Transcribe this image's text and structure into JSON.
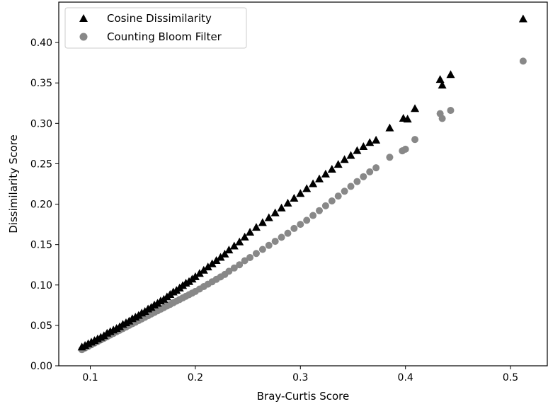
{
  "chart_data": {
    "type": "scatter",
    "title": "",
    "xlabel": "Bray-Curtis Score",
    "ylabel": "Dissimilarity Score",
    "xlim": [
      0.07,
      0.535
    ],
    "ylim": [
      0.0,
      0.45
    ],
    "xticks": [
      0.1,
      0.2,
      0.3,
      0.4,
      0.5
    ],
    "xtick_labels": [
      "0.1",
      "0.2",
      "0.3",
      "0.4",
      "0.5"
    ],
    "yticks": [
      0.0,
      0.05,
      0.1,
      0.15,
      0.2,
      0.25,
      0.3,
      0.35,
      0.4
    ],
    "ytick_labels": [
      "0.00",
      "0.05",
      "0.10",
      "0.15",
      "0.20",
      "0.25",
      "0.30",
      "0.35",
      "0.40"
    ],
    "grid": false,
    "legend_position": "top-left",
    "series": [
      {
        "name": "Cosine Dissimilarity",
        "marker": "triangle",
        "color": "#000000",
        "x": [
          0.092,
          0.095,
          0.098,
          0.101,
          0.104,
          0.107,
          0.11,
          0.113,
          0.116,
          0.119,
          0.122,
          0.125,
          0.128,
          0.131,
          0.134,
          0.137,
          0.14,
          0.143,
          0.146,
          0.149,
          0.152,
          0.155,
          0.158,
          0.161,
          0.164,
          0.167,
          0.17,
          0.173,
          0.176,
          0.179,
          0.182,
          0.185,
          0.188,
          0.191,
          0.194,
          0.197,
          0.2,
          0.204,
          0.208,
          0.212,
          0.216,
          0.22,
          0.224,
          0.228,
          0.232,
          0.237,
          0.242,
          0.247,
          0.252,
          0.258,
          0.264,
          0.27,
          0.276,
          0.282,
          0.288,
          0.294,
          0.3,
          0.306,
          0.312,
          0.318,
          0.324,
          0.33,
          0.336,
          0.342,
          0.348,
          0.354,
          0.36,
          0.366,
          0.372,
          0.385,
          0.398,
          0.402,
          0.409,
          0.433,
          0.435,
          0.443,
          0.512
        ],
        "y": [
          0.023,
          0.025,
          0.027,
          0.029,
          0.031,
          0.033,
          0.035,
          0.037,
          0.04,
          0.042,
          0.044,
          0.046,
          0.048,
          0.051,
          0.053,
          0.055,
          0.058,
          0.06,
          0.062,
          0.065,
          0.067,
          0.07,
          0.072,
          0.075,
          0.077,
          0.08,
          0.082,
          0.085,
          0.088,
          0.091,
          0.093,
          0.096,
          0.099,
          0.102,
          0.104,
          0.107,
          0.11,
          0.114,
          0.118,
          0.122,
          0.126,
          0.13,
          0.134,
          0.138,
          0.143,
          0.148,
          0.153,
          0.159,
          0.165,
          0.171,
          0.177,
          0.183,
          0.189,
          0.195,
          0.201,
          0.207,
          0.213,
          0.219,
          0.225,
          0.231,
          0.237,
          0.243,
          0.249,
          0.255,
          0.26,
          0.266,
          0.271,
          0.276,
          0.279,
          0.294,
          0.306,
          0.305,
          0.318,
          0.354,
          0.347,
          0.36,
          0.429
        ]
      },
      {
        "name": "Counting Bloom Filter",
        "marker": "circle",
        "color": "#888888",
        "x": [
          0.092,
          0.095,
          0.098,
          0.101,
          0.104,
          0.107,
          0.11,
          0.113,
          0.116,
          0.119,
          0.122,
          0.125,
          0.128,
          0.131,
          0.134,
          0.137,
          0.14,
          0.143,
          0.146,
          0.149,
          0.152,
          0.155,
          0.158,
          0.161,
          0.164,
          0.167,
          0.17,
          0.173,
          0.176,
          0.179,
          0.182,
          0.185,
          0.188,
          0.191,
          0.194,
          0.197,
          0.2,
          0.204,
          0.208,
          0.212,
          0.216,
          0.22,
          0.224,
          0.228,
          0.232,
          0.237,
          0.242,
          0.247,
          0.252,
          0.258,
          0.264,
          0.27,
          0.276,
          0.282,
          0.288,
          0.294,
          0.3,
          0.306,
          0.312,
          0.318,
          0.324,
          0.33,
          0.336,
          0.342,
          0.348,
          0.354,
          0.36,
          0.366,
          0.372,
          0.385,
          0.397,
          0.4,
          0.409,
          0.433,
          0.435,
          0.443,
          0.512
        ],
        "y": [
          0.02,
          0.022,
          0.024,
          0.026,
          0.028,
          0.03,
          0.032,
          0.034,
          0.036,
          0.038,
          0.04,
          0.042,
          0.044,
          0.046,
          0.048,
          0.05,
          0.052,
          0.054,
          0.056,
          0.058,
          0.06,
          0.062,
          0.064,
          0.066,
          0.068,
          0.07,
          0.072,
          0.074,
          0.076,
          0.078,
          0.08,
          0.082,
          0.084,
          0.086,
          0.088,
          0.09,
          0.092,
          0.095,
          0.098,
          0.101,
          0.104,
          0.107,
          0.11,
          0.113,
          0.117,
          0.121,
          0.125,
          0.13,
          0.134,
          0.139,
          0.144,
          0.149,
          0.154,
          0.159,
          0.164,
          0.17,
          0.175,
          0.18,
          0.186,
          0.192,
          0.198,
          0.204,
          0.21,
          0.216,
          0.222,
          0.228,
          0.234,
          0.24,
          0.245,
          0.258,
          0.266,
          0.268,
          0.28,
          0.312,
          0.306,
          0.316,
          0.377
        ]
      }
    ]
  }
}
